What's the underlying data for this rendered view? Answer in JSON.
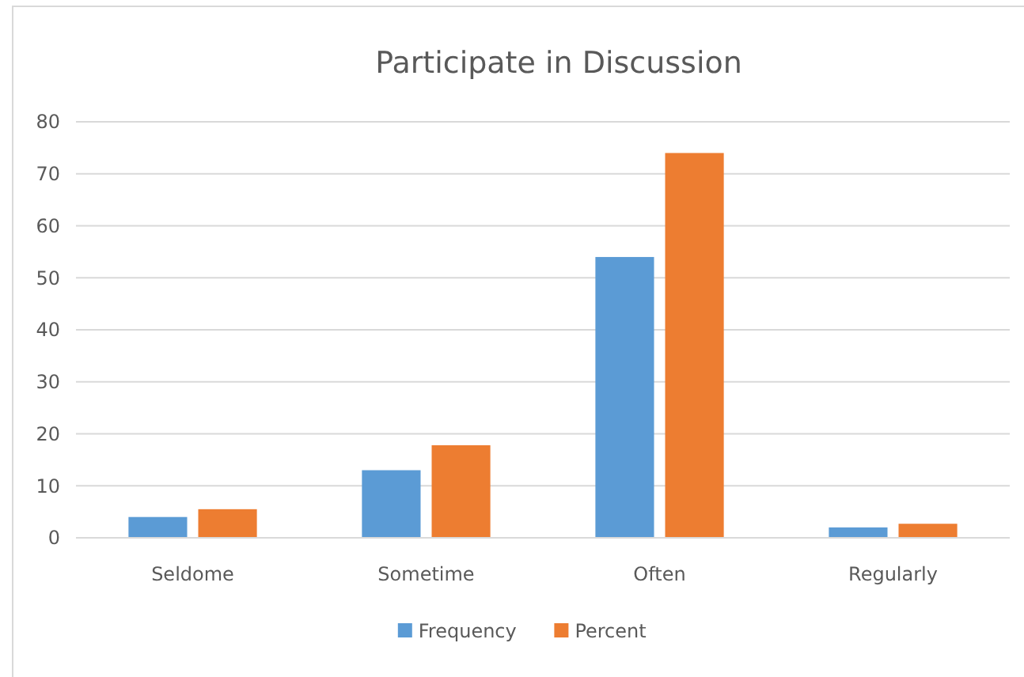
{
  "chart_data": {
    "type": "bar",
    "title": "Participate in Discussion",
    "categories": [
      "Seldome",
      "Sometime",
      "Often",
      "Regularly"
    ],
    "series": [
      {
        "name": "Frequency",
        "color": "#5b9bd5",
        "values": [
          4,
          13,
          54,
          2
        ]
      },
      {
        "name": "Percent",
        "color": "#ed7d31",
        "values": [
          5.5,
          17.8,
          74,
          2.7
        ]
      }
    ],
    "ylim": [
      0,
      80
    ],
    "yticks": [
      0,
      10,
      20,
      30,
      40,
      50,
      60,
      70,
      80
    ],
    "grid": "y",
    "legend": "bottom"
  }
}
